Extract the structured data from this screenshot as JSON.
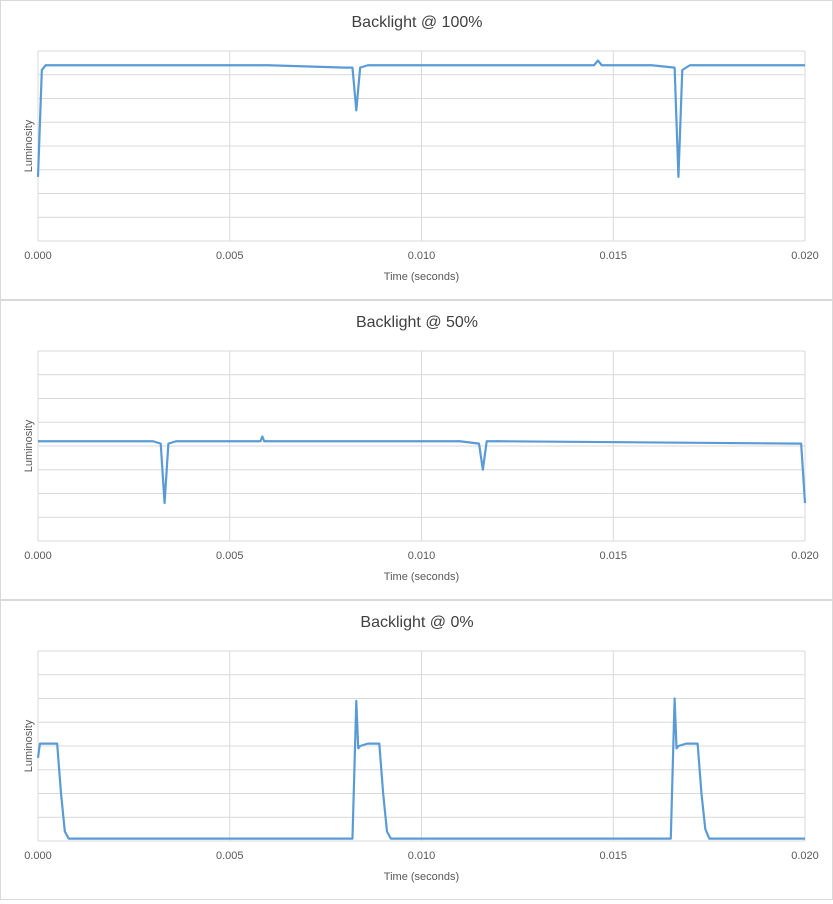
{
  "chart_data": [
    {
      "type": "line",
      "title": "Backlight @ 100%",
      "x_label": "Time (seconds)",
      "y_label": "Luminosity",
      "xlim": [
        0,
        0.02
      ],
      "ylim": [
        0,
        8
      ],
      "xticks": [
        {
          "value": 0,
          "label": "0.000"
        },
        {
          "value": 0.005,
          "label": "0.005"
        },
        {
          "value": 0.01,
          "label": "0.010"
        },
        {
          "value": 0.015,
          "label": "0.015"
        },
        {
          "value": 0.02,
          "label": "0.020"
        }
      ],
      "yticks": [
        0,
        1,
        2,
        3,
        4,
        5,
        6,
        7,
        8
      ],
      "ytick_labels_visible": false,
      "grid": true,
      "x": [
        0,
        0.0001,
        0.0002,
        0.002,
        0.004,
        0.006,
        0.008,
        0.0082,
        0.0083,
        0.0084,
        0.0086,
        0.01,
        0.012,
        0.0145,
        0.0146,
        0.0147,
        0.016,
        0.0166,
        0.0167,
        0.0168,
        0.017,
        0.02
      ],
      "series": [
        {
          "color": "#5b9bd5",
          "values": [
            2.7,
            7.2,
            7.4,
            7.4,
            7.4,
            7.4,
            7.3,
            7.3,
            5.5,
            7.3,
            7.4,
            7.4,
            7.4,
            7.4,
            7.6,
            7.4,
            7.4,
            7.3,
            2.7,
            7.2,
            7.4,
            7.4
          ]
        }
      ]
    },
    {
      "type": "line",
      "title": "Backlight @ 50%",
      "x_label": "Time (seconds)",
      "y_label": "Luminosity",
      "xlim": [
        0,
        0.02
      ],
      "ylim": [
        0,
        8
      ],
      "xticks": [
        {
          "value": 0,
          "label": "0.000"
        },
        {
          "value": 0.005,
          "label": "0.005"
        },
        {
          "value": 0.01,
          "label": "0.010"
        },
        {
          "value": 0.015,
          "label": "0.015"
        },
        {
          "value": 0.02,
          "label": "0.020"
        }
      ],
      "yticks": [
        0,
        1,
        2,
        3,
        4,
        5,
        6,
        7,
        8
      ],
      "ytick_labels_visible": false,
      "grid": true,
      "x": [
        0,
        0.003,
        0.0032,
        0.0033,
        0.0034,
        0.0036,
        0.0058,
        0.00585,
        0.0059,
        0.011,
        0.0115,
        0.0116,
        0.0117,
        0.012,
        0.0199,
        0.02
      ],
      "series": [
        {
          "color": "#5b9bd5",
          "values": [
            4.2,
            4.2,
            4.1,
            1.6,
            4.1,
            4.2,
            4.2,
            4.4,
            4.2,
            4.2,
            4.1,
            3.0,
            4.2,
            4.2,
            4.1,
            1.6
          ]
        }
      ]
    },
    {
      "type": "line",
      "title": "Backlight @ 0%",
      "x_label": "Time (seconds)",
      "y_label": "Luminosity",
      "xlim": [
        0,
        0.02
      ],
      "ylim": [
        0,
        8
      ],
      "xticks": [
        {
          "value": 0,
          "label": "0.000"
        },
        {
          "value": 0.005,
          "label": "0.005"
        },
        {
          "value": 0.01,
          "label": "0.010"
        },
        {
          "value": 0.015,
          "label": "0.015"
        },
        {
          "value": 0.02,
          "label": "0.020"
        }
      ],
      "yticks": [
        0,
        1,
        2,
        3,
        4,
        5,
        6,
        7,
        8
      ],
      "ytick_labels_visible": false,
      "grid": true,
      "x": [
        0,
        5e-05,
        0.0002,
        0.0005,
        0.0006,
        0.0007,
        0.0008,
        0.0082,
        0.0083,
        0.00835,
        0.0084,
        0.0086,
        0.0088,
        0.0089,
        0.009,
        0.0091,
        0.0092,
        0.0165,
        0.0166,
        0.01665,
        0.0167,
        0.0169,
        0.0171,
        0.0172,
        0.0173,
        0.0174,
        0.0175,
        0.02
      ],
      "series": [
        {
          "color": "#5b9bd5",
          "values": [
            3.5,
            4.1,
            4.1,
            4.1,
            2.0,
            0.4,
            0.1,
            0.1,
            5.9,
            3.9,
            4.0,
            4.1,
            4.1,
            4.1,
            2.0,
            0.4,
            0.1,
            0.1,
            6.0,
            3.9,
            4.0,
            4.1,
            4.1,
            4.1,
            2.0,
            0.5,
            0.1,
            0.1
          ]
        }
      ]
    }
  ]
}
